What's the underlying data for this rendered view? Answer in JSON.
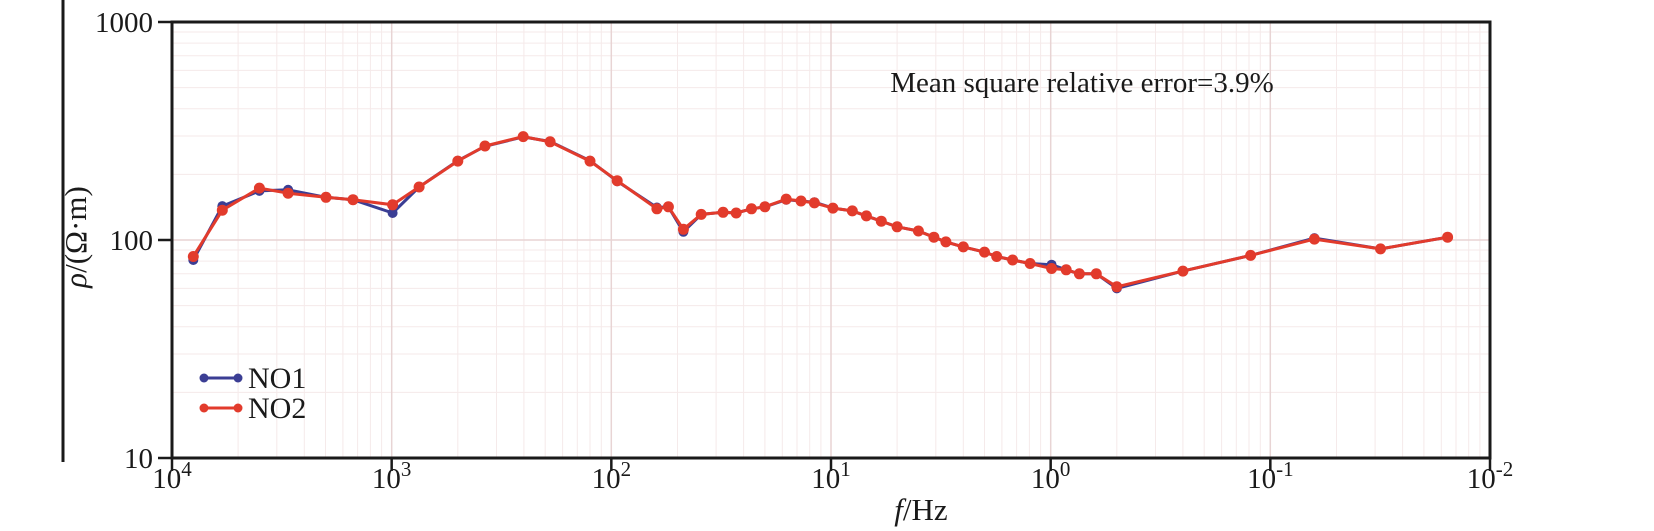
{
  "figure": {
    "xlabel": {
      "symbol": "f",
      "rest": "/Hz"
    },
    "ylabel": {
      "symbol": "ρ",
      "rest": "/(Ω·m)"
    }
  },
  "chart_data": {
    "type": "line",
    "title": "",
    "annotation": "Mean square relative error=3.9%",
    "x_axis": {
      "label": "f/Hz",
      "scale": "log",
      "reversed": true,
      "max_exponent": 4,
      "min_exponent": -2,
      "tick_exponents": [
        4,
        3,
        2,
        1,
        0,
        -1,
        -2
      ],
      "tick_labels": [
        "10^4",
        "10^3",
        "10^2",
        "10^1",
        "10^0",
        "10^-1",
        "10^-2"
      ]
    },
    "y_axis": {
      "label": "ρ/(Ω·m)",
      "scale": "log",
      "min": 10,
      "max": 1000,
      "tick_values": [
        1000,
        100,
        10
      ]
    },
    "grid": {
      "minor_color": "#f5eaea",
      "major_color": "#e8d4d4",
      "visible": true
    },
    "axis_color": "#1a1a1a",
    "legend": {
      "position": "bottom-left",
      "x": 204,
      "ys": [
        378,
        408
      ]
    },
    "frequencies_hz": [
      8000,
      5900,
      4000,
      2960,
      1990,
      1500,
      990,
      750,
      500,
      376,
      252,
      190,
      125,
      94,
      62,
      55,
      47,
      39,
      31,
      27,
      23,
      20,
      16,
      13.7,
      11.9,
      9.8,
      8.0,
      6.9,
      5.9,
      5.0,
      4.0,
      3.4,
      3.0,
      2.5,
      2.0,
      1.76,
      1.49,
      1.24,
      0.99,
      0.85,
      0.74,
      0.62,
      0.5,
      0.25,
      0.123,
      0.063,
      0.0315,
      0.0156
    ],
    "series": [
      {
        "name": "NO1",
        "color": "#3b3e94",
        "marker_radius": 5,
        "values": [
          81,
          143,
          168,
          170,
          157,
          153,
          133,
          175,
          231,
          269,
          297,
          283,
          231,
          186,
          141,
          142,
          109,
          131,
          134,
          133,
          139,
          142,
          153,
          151,
          149,
          140,
          136,
          129,
          122,
          115,
          110,
          103,
          98,
          93,
          88,
          84,
          81,
          78,
          77,
          73,
          70,
          70,
          60,
          72,
          85,
          102,
          91,
          103
        ]
      },
      {
        "name": "NO2",
        "color": "#e23b2c",
        "marker_radius": 5.5,
        "values": [
          84,
          137,
          173,
          164,
          157,
          153,
          145,
          175,
          230,
          270,
          298,
          282,
          230,
          187,
          139,
          142,
          112,
          131,
          134,
          133,
          139,
          142,
          154,
          151,
          148,
          140,
          136,
          129,
          122,
          115,
          110,
          103,
          98,
          93,
          88,
          84,
          81,
          78,
          74,
          73,
          70,
          70,
          61,
          72,
          85,
          101,
          91,
          103
        ]
      }
    ]
  }
}
